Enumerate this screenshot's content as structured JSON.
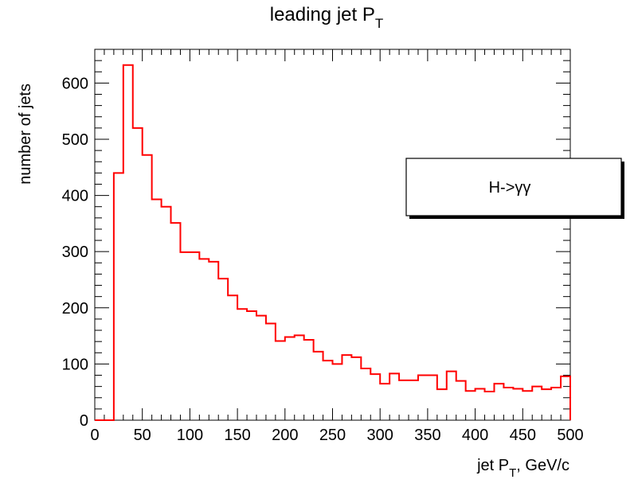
{
  "chart_data": {
    "type": "histogram",
    "title": "leading jet P",
    "title_sub": "T",
    "xlabel": "jet P",
    "xlabel_sub": "T",
    "xlabel_suffix": ", GeV/c",
    "ylabel": "number of jets",
    "xlim": [
      0,
      500
    ],
    "ylim": [
      0,
      660
    ],
    "x_ticks": [
      0,
      50,
      100,
      150,
      200,
      250,
      300,
      350,
      400,
      450,
      500
    ],
    "y_ticks": [
      0,
      100,
      200,
      300,
      400,
      500,
      600
    ],
    "bin_width": 10,
    "series": [
      {
        "name": "H->γγ",
        "color": "#ff0000",
        "bin_edges_start": 0,
        "values": [
          0,
          0,
          440,
          632,
          520,
          472,
          393,
          380,
          351,
          299,
          299,
          287,
          282,
          252,
          222,
          198,
          194,
          186,
          172,
          141,
          148,
          151,
          143,
          122,
          106,
          100,
          116,
          112,
          92,
          82,
          65,
          83,
          71,
          71,
          80,
          80,
          55,
          87,
          70,
          52,
          56,
          51,
          65,
          58,
          56,
          52,
          60,
          55,
          58,
          78
        ]
      }
    ],
    "legend": {
      "entries": [
        "H->γγ"
      ],
      "position": "right"
    },
    "grid": false
  }
}
